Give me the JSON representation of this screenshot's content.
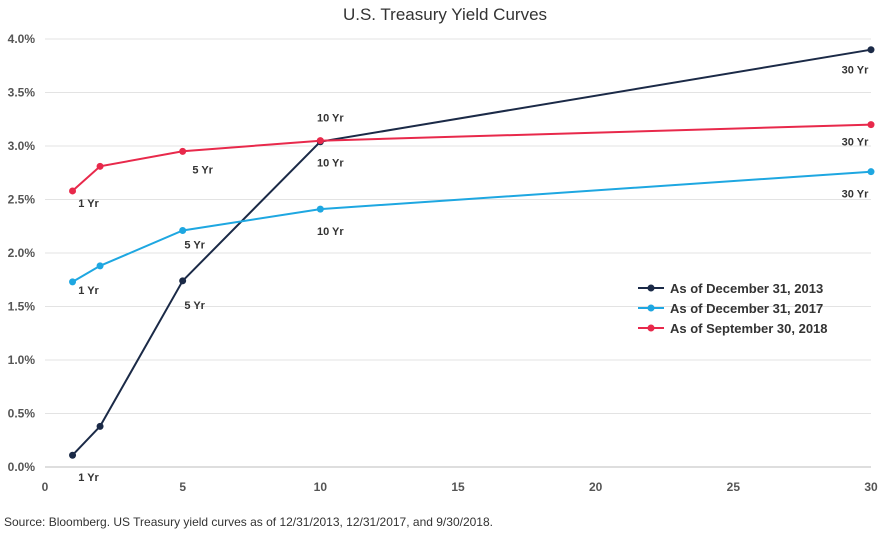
{
  "chart_data": {
    "type": "line",
    "title": "U.S. Treasury Yield Curves",
    "xlabel": "",
    "ylabel": "",
    "xlim": [
      0,
      30
    ],
    "ylim": [
      0,
      4.0
    ],
    "x_ticks": [
      "0",
      "5",
      "10",
      "15",
      "20",
      "25",
      "30"
    ],
    "y_ticks": [
      "0.0%",
      "0.5%",
      "1.0%",
      "1.5%",
      "2.0%",
      "2.5%",
      "3.0%",
      "3.5%",
      "4.0%"
    ],
    "grid": "horizontal",
    "legend_position": "right",
    "series": [
      {
        "name": "As of December 31, 2013",
        "color": "#1b2a47",
        "points": [
          [
            1,
            0.11
          ],
          [
            2,
            0.38
          ],
          [
            5,
            1.74
          ],
          [
            10,
            3.04
          ],
          [
            30,
            3.9
          ]
        ],
        "labels": [
          {
            "text": "1 Yr",
            "x": 1
          },
          {
            "text": "5 Yr",
            "x": 5
          },
          {
            "text": "10 Yr",
            "x": 10
          },
          {
            "text": "30 Yr",
            "x": 30
          }
        ]
      },
      {
        "name": "As of December 31, 2017",
        "color": "#1ea7e1",
        "points": [
          [
            1,
            1.73
          ],
          [
            2,
            1.88
          ],
          [
            5,
            2.21
          ],
          [
            10,
            2.41
          ],
          [
            30,
            2.76
          ]
        ],
        "labels": [
          {
            "text": "1 Yr",
            "x": 1
          },
          {
            "text": "5 Yr",
            "x": 5
          },
          {
            "text": "10 Yr",
            "x": 10
          },
          {
            "text": "30 Yr",
            "x": 30
          }
        ]
      },
      {
        "name": "As of September 30, 2018",
        "color": "#e8294b",
        "points": [
          [
            1,
            2.58
          ],
          [
            2,
            2.81
          ],
          [
            5,
            2.95
          ],
          [
            10,
            3.05
          ],
          [
            30,
            3.2
          ]
        ],
        "labels": [
          {
            "text": "1 Yr",
            "x": 1
          },
          {
            "text": "5 Yr",
            "x": 5
          },
          {
            "text": "10 Yr",
            "x": 10
          },
          {
            "text": "30 Yr",
            "x": 30
          }
        ]
      }
    ]
  },
  "source_text": "Source: Bloomberg. US Treasury yield curves as of 12/31/2013, 12/31/2017, and 9/30/2018."
}
